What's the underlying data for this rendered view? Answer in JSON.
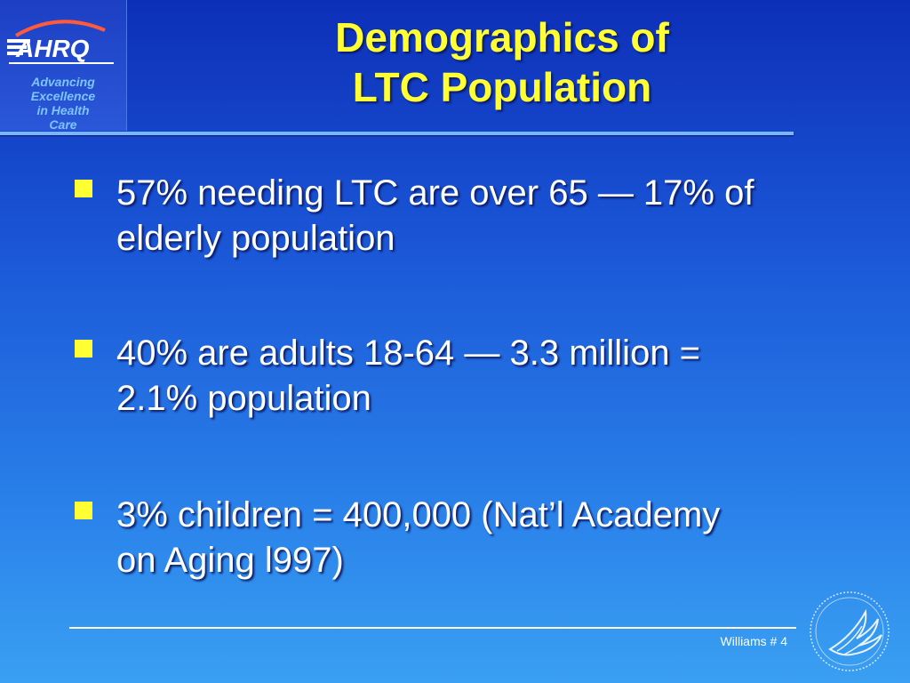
{
  "logo": {
    "brand": "AHRQ",
    "tagline": [
      "Advancing",
      "Excellence",
      "in Health",
      "Care"
    ]
  },
  "title": [
    "Demographics of",
    "LTC Population"
  ],
  "bullets": [
    [
      "57% needing LTC are over 65 — 17% of",
      "elderly population"
    ],
    [
      "40% are adults 18-64 — 3.3 million =",
      "2.1% population"
    ],
    [
      "3% children = 400,000 (Nat’l Academy",
      "on Aging l997)"
    ]
  ],
  "footer": {
    "label": "Williams # 4"
  },
  "colors": {
    "title": "#ffff33",
    "bullet_marker": "#ffff33",
    "text": "#ffffff"
  },
  "icons": {
    "logo": "ahrq-logo",
    "seal": "hhs-eagle-seal-icon"
  }
}
